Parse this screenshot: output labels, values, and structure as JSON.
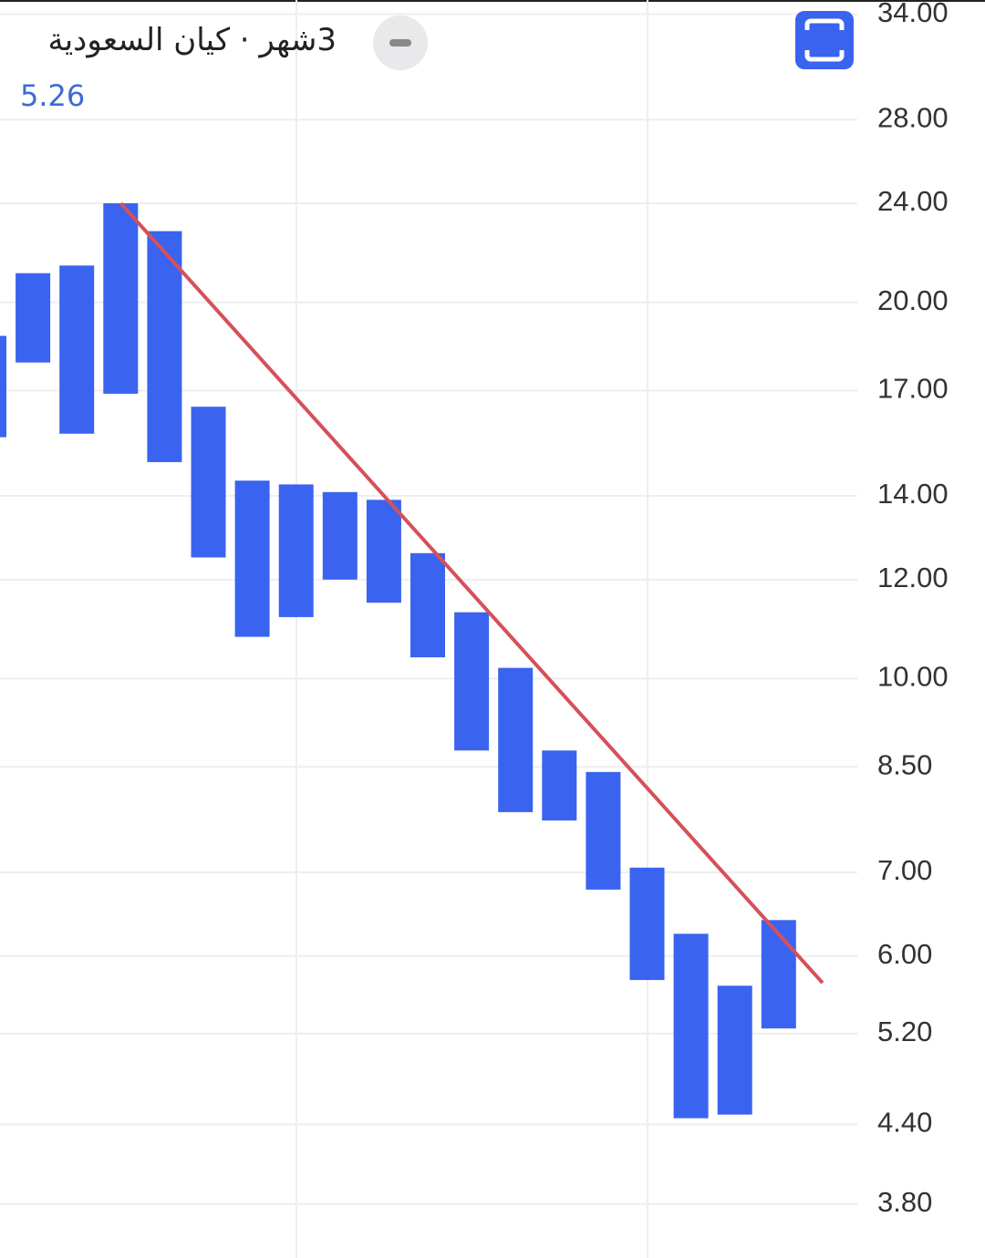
{
  "header": {
    "title": "3شهر · كيان السعودية",
    "value": "5.26"
  },
  "chart_data": {
    "type": "range",
    "log_scale": true,
    "grid": true,
    "categories": [
      null,
      null,
      null,
      null,
      null,
      null,
      null,
      null,
      null,
      null,
      null,
      null,
      null,
      null,
      null,
      null,
      null,
      null,
      null,
      null
    ],
    "series": [
      {
        "color": "#3a63f0",
        "highs": [
          18.8,
          21.1,
          21.4,
          24.0,
          22.8,
          16.5,
          14.4,
          14.3,
          14.1,
          13.9,
          12.6,
          11.3,
          10.2,
          8.76,
          8.42,
          7.06,
          6.25,
          5.68,
          6.41,
          null
        ],
        "lows": [
          15.6,
          17.9,
          15.7,
          16.9,
          14.9,
          12.5,
          10.8,
          11.2,
          12.0,
          11.5,
          10.4,
          8.76,
          7.82,
          7.7,
          6.78,
          5.74,
          4.45,
          4.48,
          5.25,
          null
        ]
      }
    ],
    "trendline": {
      "color": "#d5515a",
      "values": [
        null,
        null,
        null,
        24.0,
        null,
        null,
        null,
        null,
        null,
        null,
        null,
        null,
        null,
        null,
        null,
        null,
        null,
        null,
        null,
        5.71
      ]
    },
    "ylim": [
      3.44,
      34.9
    ],
    "yticks": [
      {
        "value": 34,
        "label": "34.00"
      },
      {
        "value": 28,
        "label": "28.00"
      },
      {
        "value": 24,
        "label": "24.00"
      },
      {
        "value": 20,
        "label": "20.00"
      },
      {
        "value": 17,
        "label": "17.00"
      },
      {
        "value": 14,
        "label": "14.00"
      },
      {
        "value": 12,
        "label": "12.00"
      },
      {
        "value": 10,
        "label": "10.00"
      },
      {
        "value": 8.5,
        "label": "8.50"
      },
      {
        "value": 7,
        "label": "7.00"
      },
      {
        "value": 6,
        "label": "6.00"
      },
      {
        "value": 5.2,
        "label": "5.20"
      },
      {
        "value": 4.4,
        "label": "4.40"
      },
      {
        "value": 3.8,
        "label": "3.80"
      }
    ]
  }
}
